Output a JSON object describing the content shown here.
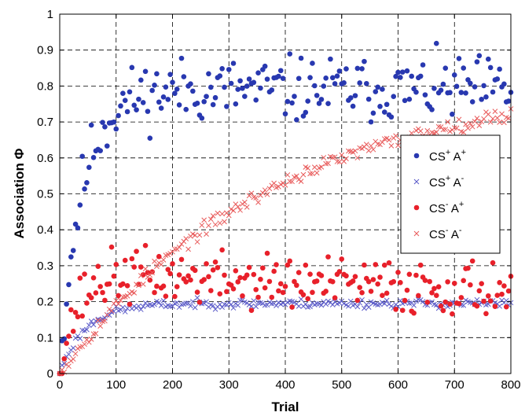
{
  "chart_data": {
    "type": "scatter",
    "xlabel": "Trial",
    "ylabel_text": "Association ",
    "ylabel_symbol": "Φ",
    "xlim": [
      0,
      800
    ],
    "ylim": [
      0,
      1
    ],
    "xticks": [
      0,
      100,
      200,
      300,
      400,
      500,
      600,
      700,
      800
    ],
    "yticks": [
      0,
      0.1,
      0.2,
      0.3,
      0.4,
      0.5,
      0.6,
      0.7,
      0.8,
      0.9,
      1
    ],
    "xtick_labels": [
      "0",
      "100",
      "200",
      "300",
      "400",
      "500",
      "600",
      "700",
      "800"
    ],
    "ytick_labels": [
      "0",
      "0.1",
      "0.2",
      "0.3",
      "0.4",
      "0.5",
      "0.6",
      "0.7",
      "0.8",
      "0.9",
      "1"
    ],
    "grid": true,
    "legend_position": "right",
    "sample_every": 4,
    "series": [
      {
        "label": {
          "a": "CS",
          "a_sup": "+",
          "b": " A",
          "b_sup": "+"
        },
        "marker": "dot",
        "color": "#2838b0",
        "shape": "saturating",
        "start": 0.0,
        "plateau": 0.79,
        "tau": 38,
        "noise": 0.045,
        "seed": 11
      },
      {
        "label": {
          "a": "CS",
          "a_sup": "+",
          "b": " A",
          "b_sup": "-"
        },
        "marker": "x",
        "color": "#5a5ac8",
        "shape": "saturating",
        "start": 0.0,
        "plateau": 0.195,
        "tau": 45,
        "noise": 0.006,
        "seed": 23
      },
      {
        "label": {
          "a": "CS",
          "a_sup": "-",
          "b": " A",
          "b_sup": "+"
        },
        "marker": "dot",
        "color": "#e8202a",
        "shape": "rise_decay",
        "start": 0.0,
        "peak": 0.29,
        "tau": 30,
        "decay_end": 0.215,
        "decay_tau": 600,
        "noise": 0.038,
        "seed": 37
      },
      {
        "label": {
          "a": "CS",
          "a_sup": "-",
          "b": " A",
          "b_sup": "-"
        },
        "marker": "x",
        "color": "#e85a5a",
        "shape": "saturating",
        "start": 0.0,
        "plateau": 0.82,
        "tau": 380,
        "noise": 0.01,
        "seed": 53
      }
    ]
  }
}
